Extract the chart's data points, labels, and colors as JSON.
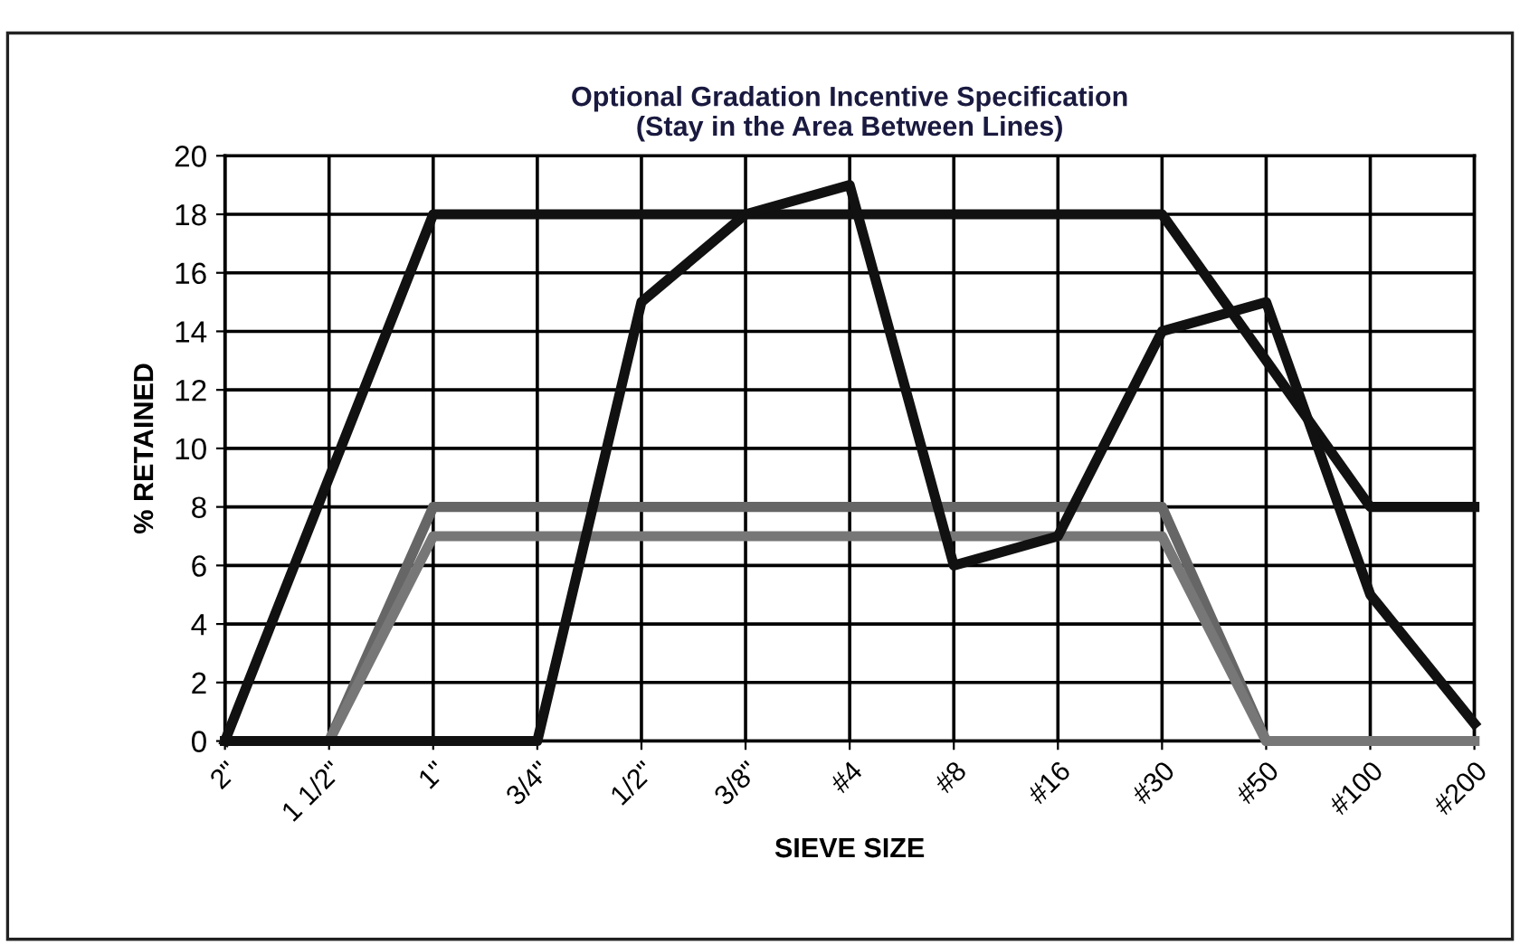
{
  "chart_data": {
    "type": "line",
    "title": "Optional Gradation Incentive Specification\n(Stay in the Area Between Lines)",
    "xlabel": "SIEVE SIZE",
    "ylabel": "% RETAINED",
    "categories": [
      "2\"",
      "1 1/2\"",
      "1\"",
      "3/4\"",
      "1/2\"",
      "3/8\"",
      "#4",
      "#8",
      "#16",
      "#30",
      "#50",
      "#100",
      "#200"
    ],
    "series": [
      {
        "color": "#111111",
        "values": [
          0,
          9,
          18,
          18,
          18,
          18,
          18,
          18,
          18,
          18,
          13,
          8,
          8
        ]
      },
      {
        "color": "#666666",
        "values": [
          0,
          0,
          8,
          8,
          8,
          8,
          8,
          8,
          8,
          8,
          0,
          0,
          0
        ]
      },
      {
        "color": "#777777",
        "values": [
          0,
          0,
          7,
          7,
          7,
          7,
          7,
          7,
          7,
          7,
          0,
          0,
          0
        ]
      },
      {
        "color": "#111111",
        "values": [
          0,
          0,
          0,
          0,
          15,
          18,
          19,
          6,
          7,
          14,
          15,
          5,
          0.6
        ]
      }
    ],
    "ylim": [
      0,
      20
    ],
    "yticks": [
      0,
      2,
      4,
      6,
      8,
      10,
      12,
      14,
      16,
      18,
      20
    ],
    "grid": true,
    "marker": "none",
    "line_style": "solid"
  }
}
